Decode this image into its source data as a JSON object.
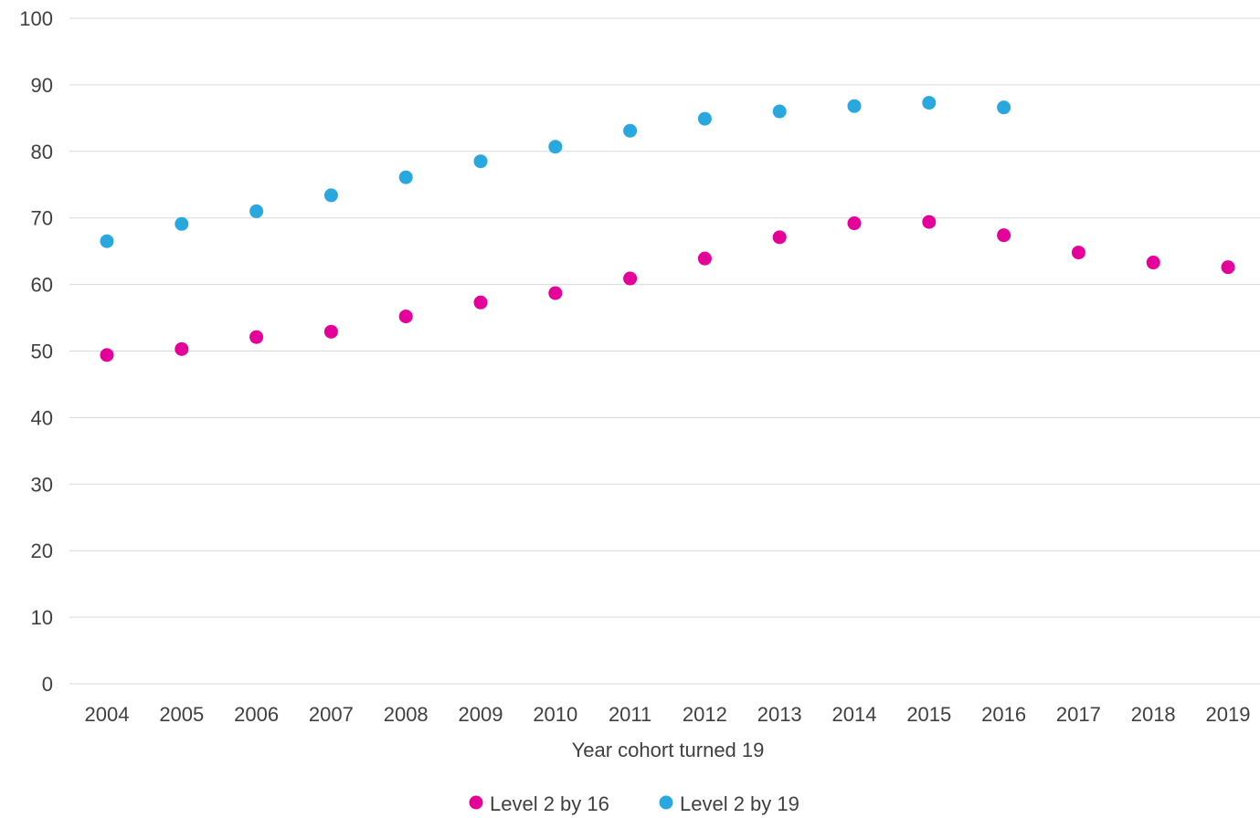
{
  "chart_data": {
    "type": "scatter",
    "title": "",
    "xlabel": "Year cohort turned 19",
    "ylabel": "",
    "categories": [
      "2004",
      "2005",
      "2006",
      "2007",
      "2008",
      "2009",
      "2010",
      "2011",
      "2012",
      "2013",
      "2014",
      "2015",
      "2016",
      "2017",
      "2018",
      "2019"
    ],
    "ylim": [
      0,
      100
    ],
    "yticks": [
      0,
      10,
      20,
      30,
      40,
      50,
      60,
      70,
      80,
      90,
      100
    ],
    "grid": true,
    "legend_position": "bottom",
    "series": [
      {
        "name": "Level 2 by 16",
        "color": "#e5009a",
        "values": [
          49.4,
          50.3,
          52.1,
          52.9,
          55.2,
          57.3,
          58.7,
          60.9,
          63.9,
          67.1,
          69.2,
          69.4,
          67.4,
          64.8,
          63.3,
          62.6
        ]
      },
      {
        "name": "Level 2 by 19",
        "color": "#29a8e0",
        "values": [
          66.5,
          69.1,
          71.0,
          73.4,
          76.1,
          78.5,
          80.7,
          83.1,
          84.9,
          86.0,
          86.8,
          87.3,
          86.6,
          null,
          null,
          null
        ]
      }
    ]
  }
}
